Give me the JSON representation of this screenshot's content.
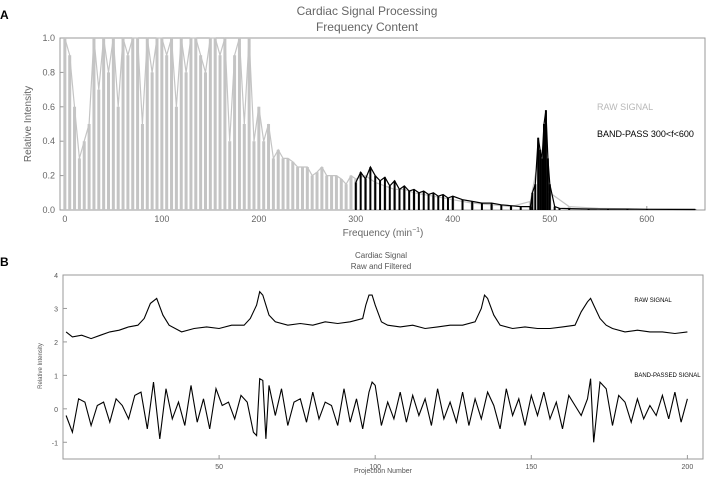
{
  "panels": {
    "a": {
      "letter": "A",
      "title_line1": "Cardiac Signal Processing",
      "title_line2": "Frequency Content",
      "xlabel": "Frequency (min",
      "xlabel_sup": "−1",
      "xlabel_end": ")",
      "ylabel": "Relative Intensity"
    },
    "b": {
      "letter": "B",
      "title_line1": "Cardiac Signal",
      "title_line2": "Raw and Filtered",
      "xlabel": "Projection Number",
      "ylabel": "Relative Intensity"
    }
  },
  "chart_data": [
    {
      "type": "line",
      "panel": "A",
      "title": "Cardiac Signal Processing\nFrequency Content",
      "xlabel": "Frequency (min^-1)",
      "ylabel": "Relative Intensity",
      "xlim": [
        -5,
        660
      ],
      "ylim": [
        0,
        1.0
      ],
      "xticks": [
        0,
        100,
        200,
        300,
        400,
        500,
        600
      ],
      "yticks": [
        0.0,
        0.2,
        0.4,
        0.6,
        0.8,
        1.0
      ],
      "xtick_labels": [
        "0",
        "100",
        "200",
        "300",
        "400",
        "500",
        "600"
      ],
      "ytick_labels": [
        "0.0",
        "0.2",
        "0.4",
        "0.6",
        "0.8",
        "1.0"
      ],
      "legend_placement": "right",
      "series": [
        {
          "name": "RAW SIGNAL",
          "color": "#c4c4c4",
          "x": [
            0,
            5,
            10,
            15,
            20,
            25,
            30,
            35,
            40,
            45,
            50,
            55,
            60,
            65,
            70,
            75,
            80,
            85,
            90,
            95,
            100,
            105,
            110,
            115,
            120,
            125,
            130,
            135,
            140,
            145,
            150,
            155,
            160,
            165,
            170,
            175,
            180,
            185,
            190,
            195,
            200,
            205,
            210,
            215,
            220,
            225,
            230,
            235,
            240,
            245,
            250,
            255,
            260,
            265,
            270,
            275,
            280,
            285,
            290,
            295,
            300,
            310,
            320,
            330,
            340,
            350,
            360,
            380,
            400,
            420,
            440,
            460,
            480,
            490,
            500,
            520,
            550,
            600,
            650
          ],
          "y": [
            1.0,
            0.9,
            0.6,
            0.3,
            0.4,
            0.5,
            1.0,
            0.7,
            1.0,
            0.8,
            1.0,
            0.6,
            1.0,
            0.9,
            1.0,
            1.0,
            0.5,
            1.0,
            0.8,
            1.0,
            1.0,
            0.9,
            1.0,
            0.6,
            1.0,
            0.8,
            1.0,
            1.0,
            0.9,
            0.8,
            1.0,
            1.0,
            0.9,
            1.0,
            0.4,
            0.9,
            1.0,
            0.5,
            1.0,
            0.4,
            0.6,
            0.4,
            0.5,
            0.3,
            0.35,
            0.3,
            0.3,
            0.28,
            0.25,
            0.25,
            0.25,
            0.2,
            0.22,
            0.25,
            0.2,
            0.2,
            0.2,
            0.18,
            0.15,
            0.2,
            0.18,
            0.2,
            0.16,
            0.14,
            0.12,
            0.12,
            0.1,
            0.08,
            0.06,
            0.04,
            0.03,
            0.02,
            0.05,
            0.35,
            0.1,
            0.02,
            0.01,
            0.005,
            0.005
          ]
        },
        {
          "name": "BAND-PASS 300<f<600",
          "color": "#000000",
          "x": [
            300,
            305,
            310,
            315,
            320,
            325,
            330,
            335,
            340,
            345,
            350,
            355,
            360,
            365,
            370,
            375,
            380,
            385,
            390,
            395,
            400,
            410,
            420,
            430,
            440,
            450,
            460,
            470,
            480,
            482,
            485,
            488,
            490,
            492,
            494,
            496,
            498,
            500,
            505,
            510,
            520,
            540,
            560,
            580,
            600,
            650
          ],
          "y": [
            0.16,
            0.22,
            0.18,
            0.25,
            0.2,
            0.17,
            0.19,
            0.14,
            0.17,
            0.12,
            0.14,
            0.11,
            0.12,
            0.1,
            0.11,
            0.09,
            0.1,
            0.08,
            0.09,
            0.07,
            0.08,
            0.06,
            0.05,
            0.04,
            0.04,
            0.03,
            0.025,
            0.02,
            0.02,
            0.1,
            0.15,
            0.42,
            0.35,
            0.3,
            0.5,
            0.58,
            0.3,
            0.15,
            0.02,
            0.01,
            0.008,
            0.006,
            0.005,
            0.005,
            0.004,
            0.003
          ]
        }
      ]
    },
    {
      "type": "line",
      "panel": "B",
      "title": "Cardiac Signal\nRaw and Filtered",
      "xlabel": "Projection Number",
      "ylabel": "Relative Intensity",
      "xlim": [
        0,
        205
      ],
      "ylim": [
        -1.5,
        4
      ],
      "xticks": [
        50,
        100,
        150,
        200
      ],
      "yticks": [
        -1,
        0,
        1,
        2,
        3,
        4
      ],
      "xtick_labels": [
        "50",
        "100",
        "150",
        "200"
      ],
      "ytick_labels": [
        "-1",
        "0",
        "1",
        "2",
        "3",
        "4"
      ],
      "series": [
        {
          "name": "RAW SIGNAL",
          "color": "#000000",
          "label_x": 183,
          "label_y": 3.2,
          "x": [
            1,
            3,
            6,
            9,
            12,
            15,
            18,
            21,
            24,
            26,
            28,
            30,
            32,
            34,
            38,
            42,
            46,
            50,
            54,
            58,
            60,
            62,
            63,
            64,
            66,
            68,
            72,
            76,
            80,
            84,
            88,
            92,
            96,
            97,
            98,
            99,
            100,
            102,
            104,
            108,
            112,
            116,
            120,
            124,
            128,
            132,
            134,
            135,
            136,
            138,
            140,
            144,
            148,
            152,
            156,
            160,
            164,
            166,
            168,
            169,
            170,
            172,
            174,
            176,
            180,
            184,
            188,
            192,
            196,
            200
          ],
          "y": [
            2.3,
            2.15,
            2.2,
            2.1,
            2.2,
            2.3,
            2.35,
            2.45,
            2.5,
            2.7,
            3.15,
            3.3,
            2.8,
            2.5,
            2.3,
            2.4,
            2.45,
            2.4,
            2.5,
            2.5,
            2.7,
            3.1,
            3.5,
            3.4,
            2.8,
            2.6,
            2.5,
            2.55,
            2.5,
            2.6,
            2.55,
            2.6,
            2.7,
            3.1,
            3.4,
            3.4,
            3.1,
            2.6,
            2.5,
            2.45,
            2.5,
            2.4,
            2.45,
            2.5,
            2.5,
            2.6,
            3.0,
            3.4,
            3.3,
            2.8,
            2.5,
            2.4,
            2.45,
            2.4,
            2.4,
            2.45,
            2.5,
            2.9,
            3.2,
            3.3,
            3.1,
            2.7,
            2.5,
            2.4,
            2.3,
            2.35,
            2.3,
            2.3,
            2.25,
            2.3
          ]
        },
        {
          "name": "BAND-PASSED SIGNAL",
          "color": "#000000",
          "label_x": 183,
          "label_y": 0.95,
          "x": [
            1,
            3,
            5,
            7,
            9,
            11,
            13,
            15,
            17,
            19,
            21,
            23,
            25,
            27,
            29,
            31,
            33,
            35,
            37,
            39,
            41,
            43,
            45,
            47,
            49,
            51,
            53,
            55,
            57,
            59,
            61,
            62,
            63,
            64,
            65,
            66,
            68,
            70,
            72,
            74,
            76,
            78,
            80,
            82,
            84,
            86,
            88,
            90,
            92,
            94,
            96,
            98,
            99,
            100,
            102,
            104,
            106,
            108,
            110,
            112,
            114,
            116,
            118,
            120,
            122,
            124,
            126,
            128,
            130,
            132,
            134,
            136,
            138,
            140,
            142,
            144,
            146,
            148,
            150,
            152,
            154,
            156,
            158,
            160,
            162,
            164,
            166,
            168,
            169,
            170,
            172,
            174,
            176,
            178,
            180,
            182,
            184,
            186,
            188,
            190,
            192,
            194,
            196,
            198,
            200
          ],
          "y": [
            -0.2,
            -0.7,
            0.3,
            0.2,
            -0.5,
            0.1,
            0.2,
            -0.4,
            0.3,
            0.1,
            -0.3,
            0.4,
            0.5,
            -0.6,
            0.8,
            -0.9,
            0.6,
            -0.3,
            0.2,
            -0.5,
            0.7,
            -0.4,
            0.3,
            -0.6,
            0.6,
            0.1,
            0.2,
            -0.3,
            0.4,
            0.2,
            -0.7,
            -0.8,
            0.9,
            0.85,
            -0.9,
            0.7,
            -0.2,
            0.6,
            -0.5,
            0.2,
            0.3,
            -0.4,
            0.5,
            -0.3,
            0.2,
            0.1,
            -0.5,
            0.6,
            -0.4,
            0.3,
            -0.6,
            0.5,
            0.8,
            0.7,
            -0.5,
            0.2,
            -0.3,
            0.5,
            -0.4,
            0.4,
            -0.2,
            0.3,
            -0.5,
            0.6,
            -0.3,
            0.2,
            -0.4,
            0.5,
            -0.5,
            0.3,
            -0.3,
            0.5,
            0.1,
            -0.6,
            0.6,
            -0.2,
            0.3,
            -0.5,
            0.4,
            -0.2,
            0.5,
            -0.3,
            0.2,
            -0.6,
            0.4,
            0.1,
            -0.2,
            0.3,
            0.9,
            -1.0,
            0.8,
            0.6,
            -0.5,
            0.4,
            0.2,
            -0.4,
            0.3,
            -0.3,
            0.1,
            -0.2,
            0.4,
            -0.3,
            0.5,
            -0.4,
            0.3
          ]
        }
      ]
    }
  ]
}
